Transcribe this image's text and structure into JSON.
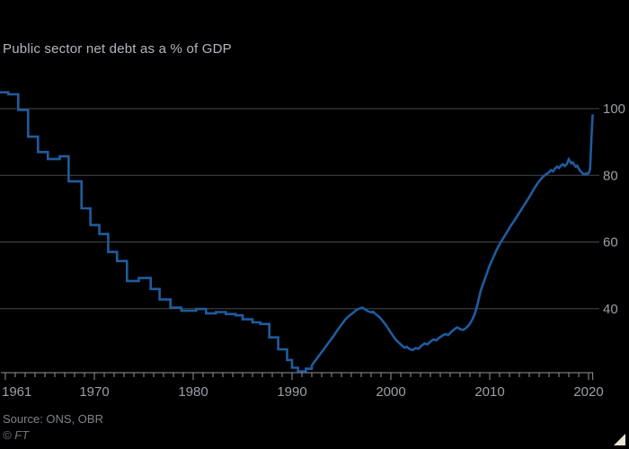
{
  "chart": {
    "title": "Public sector net debt as a % of GDP",
    "source": "Source: ONS, OBR",
    "copyright": "© FT"
  },
  "chart_data": {
    "type": "line",
    "title": "Public sector net debt as a % of GDP",
    "ylabel": "% of GDP",
    "legend": "none",
    "grid": "horizontal",
    "x_axis": {
      "label_years": [
        1961,
        1970,
        1980,
        1990,
        2000,
        2010,
        2020
      ],
      "minor_tick_every_year": true,
      "first_year_tick": 1961,
      "last_year_tick": 2020,
      "series_start": 1960.45,
      "series_end": 2020.42
    },
    "y_axis": {
      "ticks": [
        40,
        60,
        80,
        100
      ],
      "side": "right",
      "value_at_baseline": 20.8
    },
    "annual_steps_year_value": [
      [
        1960.45,
        104.9
      ],
      [
        1961.3,
        104.3
      ],
      [
        1962.3,
        99.6
      ],
      [
        1963.3,
        91.6
      ],
      [
        1964.3,
        87.0
      ],
      [
        1965.3,
        84.9
      ],
      [
        1966.5,
        85.7
      ],
      [
        1967.4,
        78.2
      ],
      [
        1968.7,
        70.1
      ],
      [
        1969.6,
        65.1
      ],
      [
        1970.5,
        62.4
      ],
      [
        1971.4,
        57.0
      ],
      [
        1972.3,
        54.3
      ],
      [
        1973.3,
        48.3
      ],
      [
        1974.5,
        49.2
      ],
      [
        1975.7,
        45.9
      ],
      [
        1976.6,
        42.8
      ],
      [
        1977.7,
        40.3
      ],
      [
        1978.8,
        39.4
      ],
      [
        1980.3,
        39.9
      ],
      [
        1981.3,
        38.6
      ],
      [
        1982.3,
        39.0
      ],
      [
        1983.3,
        38.4
      ],
      [
        1984.3,
        38.0
      ],
      [
        1985.0,
        36.8
      ],
      [
        1986.0,
        35.9
      ],
      [
        1986.8,
        35.4
      ],
      [
        1987.7,
        31.4
      ],
      [
        1988.6,
        27.8
      ],
      [
        1989.5,
        24.6
      ],
      [
        1990.0,
        22.3
      ],
      [
        1990.6,
        21.2
      ],
      [
        1991.4,
        22.0
      ]
    ],
    "monthly_year_value": [
      [
        1992.0,
        23.0
      ],
      [
        1992.3,
        24.2
      ],
      [
        1992.6,
        25.4
      ],
      [
        1993.0,
        27.0
      ],
      [
        1993.4,
        28.6
      ],
      [
        1993.8,
        30.2
      ],
      [
        1994.2,
        31.8
      ],
      [
        1994.6,
        33.6
      ],
      [
        1995.0,
        35.2
      ],
      [
        1995.4,
        36.8
      ],
      [
        1995.8,
        37.9
      ],
      [
        1996.2,
        38.8
      ],
      [
        1996.5,
        39.6
      ],
      [
        1996.8,
        40.0
      ],
      [
        1997.1,
        40.3
      ],
      [
        1997.4,
        39.8
      ],
      [
        1997.7,
        39.2
      ],
      [
        1998.0,
        38.9
      ],
      [
        1998.2,
        39.1
      ],
      [
        1998.5,
        38.3
      ],
      [
        1998.8,
        37.6
      ],
      [
        1999.1,
        36.6
      ],
      [
        1999.4,
        35.5
      ],
      [
        1999.7,
        34.2
      ],
      [
        2000.0,
        32.8
      ],
      [
        2000.2,
        31.9
      ],
      [
        2000.5,
        30.7
      ],
      [
        2000.8,
        29.8
      ],
      [
        2001.1,
        29.0
      ],
      [
        2001.4,
        28.3
      ],
      [
        2001.6,
        28.6
      ],
      [
        2001.9,
        27.9
      ],
      [
        2002.2,
        27.6
      ],
      [
        2002.5,
        28.2
      ],
      [
        2002.8,
        28.0
      ],
      [
        2003.1,
        28.9
      ],
      [
        2003.4,
        29.6
      ],
      [
        2003.7,
        29.3
      ],
      [
        2004.0,
        30.1
      ],
      [
        2004.3,
        30.8
      ],
      [
        2004.6,
        30.5
      ],
      [
        2004.9,
        31.3
      ],
      [
        2005.2,
        31.9
      ],
      [
        2005.5,
        32.4
      ],
      [
        2005.8,
        32.1
      ],
      [
        2006.1,
        33.0
      ],
      [
        2006.4,
        33.8
      ],
      [
        2006.7,
        34.4
      ],
      [
        2007.0,
        33.9
      ],
      [
        2007.3,
        33.6
      ],
      [
        2007.6,
        34.2
      ],
      [
        2007.9,
        35.1
      ],
      [
        2008.1,
        36.0
      ],
      [
        2008.3,
        37.1
      ],
      [
        2008.5,
        38.6
      ],
      [
        2008.7,
        40.5
      ],
      [
        2008.9,
        43.0
      ],
      [
        2009.1,
        45.5
      ],
      [
        2009.4,
        48.0
      ],
      [
        2009.7,
        50.5
      ],
      [
        2010.0,
        53.0
      ],
      [
        2010.3,
        55.0
      ],
      [
        2010.6,
        57.0
      ],
      [
        2010.9,
        58.8
      ],
      [
        2011.2,
        60.3
      ],
      [
        2011.5,
        61.8
      ],
      [
        2011.8,
        63.2
      ],
      [
        2012.1,
        64.8
      ],
      [
        2012.4,
        66.0
      ],
      [
        2012.7,
        67.4
      ],
      [
        2013.0,
        68.8
      ],
      [
        2013.3,
        70.2
      ],
      [
        2013.6,
        71.6
      ],
      [
        2013.9,
        73.0
      ],
      [
        2014.2,
        74.5
      ],
      [
        2014.5,
        76.0
      ],
      [
        2014.8,
        77.4
      ],
      [
        2015.1,
        78.6
      ],
      [
        2015.4,
        79.6
      ],
      [
        2015.7,
        80.3
      ],
      [
        2016.0,
        80.9
      ],
      [
        2016.2,
        81.6
      ],
      [
        2016.4,
        81.2
      ],
      [
        2016.6,
        82.0
      ],
      [
        2016.8,
        82.6
      ],
      [
        2017.0,
        82.2
      ],
      [
        2017.2,
        82.9
      ],
      [
        2017.4,
        83.3
      ],
      [
        2017.6,
        82.8
      ],
      [
        2017.8,
        83.4
      ],
      [
        2018.0,
        84.8
      ],
      [
        2018.1,
        84.3
      ],
      [
        2018.25,
        83.6
      ],
      [
        2018.4,
        83.9
      ],
      [
        2018.55,
        83.2
      ],
      [
        2018.7,
        82.6
      ],
      [
        2018.85,
        82.9
      ],
      [
        2019.0,
        82.0
      ],
      [
        2019.15,
        81.4
      ],
      [
        2019.3,
        80.9
      ],
      [
        2019.45,
        80.4
      ],
      [
        2019.6,
        80.3
      ],
      [
        2019.75,
        80.6
      ],
      [
        2019.9,
        80.4
      ],
      [
        2020.05,
        80.8
      ],
      [
        2020.15,
        82.0
      ],
      [
        2020.25,
        88.5
      ],
      [
        2020.35,
        94.5
      ],
      [
        2020.42,
        98.3
      ]
    ],
    "colors": {
      "background": "#000000",
      "line": "#1f5c9e",
      "gridline": "#45484d",
      "axis": "#8f949a",
      "tick_label": "#9aa0a6",
      "title": "#b1b7be",
      "source": "#7d8187",
      "corner_triangle": "#e9e4d8"
    }
  }
}
